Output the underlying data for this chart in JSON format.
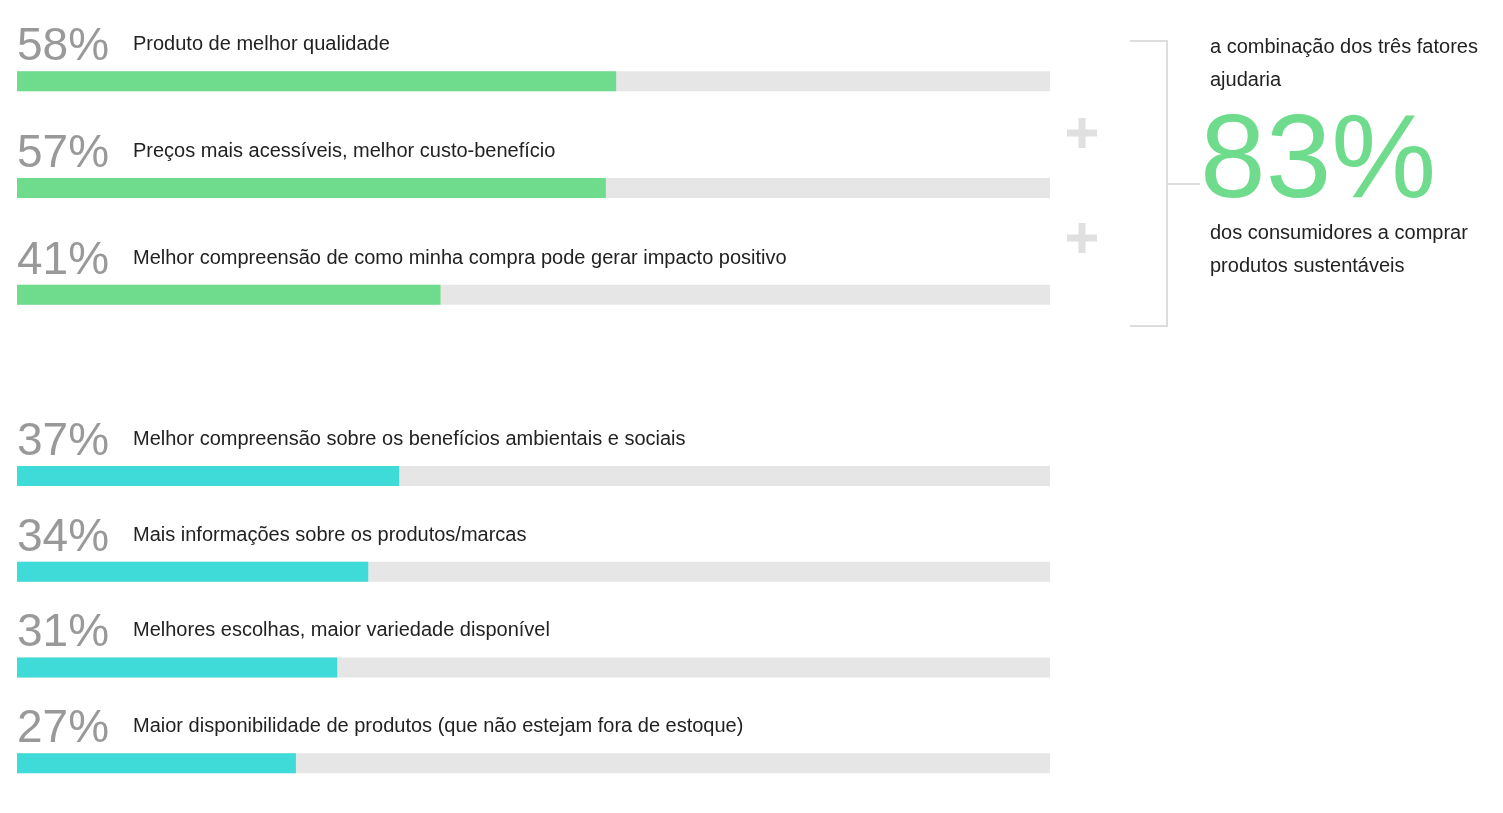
{
  "chart_data": [
    {
      "type": "bar",
      "orientation": "horizontal",
      "categories": [
        "Produto de melhor qualidade",
        "Preços mais acessíveis, melhor custo-benefício",
        "Melhor compreensão de como minha compra pode gerar impacto positivo"
      ],
      "values": [
        58,
        57,
        41
      ],
      "colors": [
        "#6edc8c",
        "#6edc8c",
        "#6edc8c"
      ],
      "value_labels": [
        "58%",
        "57%",
        "41%"
      ],
      "xlim": [
        0,
        100
      ],
      "tick_labels": "y"
    },
    {
      "type": "other",
      "annotations": [
        "a combinação dos três fatores ajudaria",
        "83%",
        "dos consumidores a comprar produtos sustentáveis"
      ]
    },
    {
      "type": "bar",
      "orientation": "horizontal",
      "categories": [
        "Melhor compreensão sobre os benefícios ambientais e sociais",
        "Mais informações sobre os produtos/marcas",
        "Melhores escolhas, maior variedade disponível",
        "Maior disponibilidade de produtos (que não estejam fora de estoque)"
      ],
      "values": [
        37,
        34,
        31,
        27
      ],
      "colors": [
        "#3edbd9",
        "#3edbd9",
        "#3edbd9",
        "#3edbd9"
      ],
      "value_labels": [
        "37%",
        "34%",
        "31%",
        "27%"
      ],
      "xlim": [
        0,
        100
      ],
      "tick_labels": "y"
    }
  ]
}
